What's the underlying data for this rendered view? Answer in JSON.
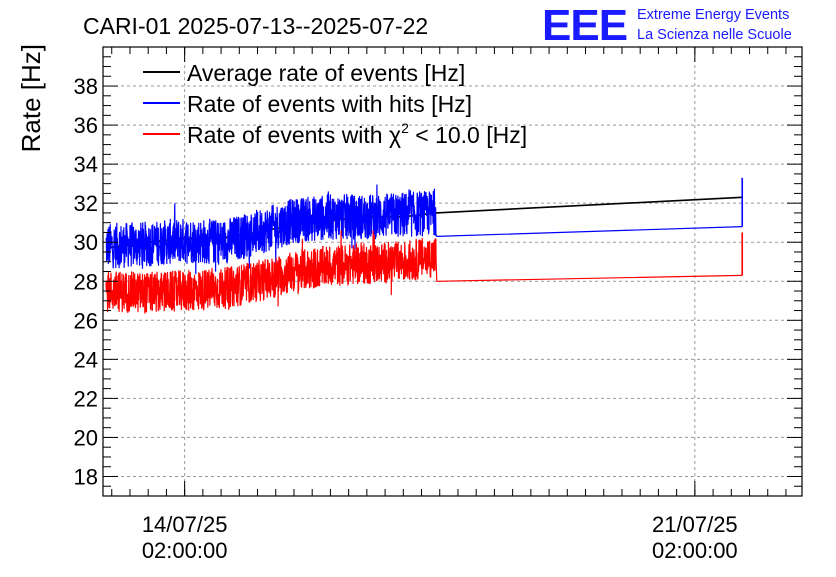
{
  "chart_data": {
    "type": "line",
    "title": "CARI-01 2025-07-13--2025-07-22",
    "ylabel": "Rate [Hz]",
    "xlabel": "",
    "x_unit": "days since 14/07/25 02:00:00",
    "xlim": [
      -1.12,
      8.47
    ],
    "ylim": [
      17,
      40
    ],
    "grid": true,
    "legend_position": "top-left",
    "y_ticks": [
      "18",
      "20",
      "22",
      "24",
      "26",
      "28",
      "30",
      "32",
      "34",
      "36",
      "38"
    ],
    "x_ticks": [
      {
        "x": 0,
        "line1": "14/07/25",
        "line2": "02:00:00"
      },
      {
        "x": 7,
        "line1": "21/07/25",
        "line2": "02:00:00"
      }
    ],
    "noisy_window": [
      -1.08,
      3.45
    ],
    "gap_end": 7.65,
    "series": [
      {
        "name": "Average rate of events [Hz]",
        "legend_main": "Average rate of events [Hz]",
        "color": "#000000",
        "points": [
          [
            -1.08,
            29.7
          ],
          [
            -0.5,
            30.0
          ],
          [
            0.0,
            30.2
          ],
          [
            0.5,
            30.2
          ],
          [
            1.0,
            30.5
          ],
          [
            1.5,
            30.9
          ],
          [
            2.0,
            31.1
          ],
          [
            2.5,
            31.3
          ],
          [
            3.0,
            31.3
          ],
          [
            3.45,
            31.5
          ],
          [
            7.65,
            32.3
          ]
        ],
        "spike": null
      },
      {
        "name": "Rate of events with hits [Hz]",
        "legend_main": "Rate of events with hits [Hz]",
        "color": "#0000ff",
        "points": [
          [
            -1.08,
            29.8
          ],
          [
            -0.5,
            29.9
          ],
          [
            0.0,
            30.1
          ],
          [
            0.5,
            30.0
          ],
          [
            1.0,
            30.5
          ],
          [
            1.5,
            31.1
          ],
          [
            2.0,
            31.3
          ],
          [
            2.5,
            31.3
          ],
          [
            3.0,
            31.4
          ],
          [
            3.45,
            31.5
          ],
          [
            3.46,
            30.3
          ],
          [
            7.65,
            30.8
          ]
        ],
        "spike": [
          30.8,
          33.3
        ]
      },
      {
        "name": "Rate of events with χ² < 10.0 [Hz]",
        "legend_prefix": "Rate of events with χ",
        "legend_sup": "2",
        "legend_suffix": " < 10.0 [Hz]",
        "color": "#ff0000",
        "points": [
          [
            -1.08,
            27.5
          ],
          [
            -0.5,
            27.4
          ],
          [
            0.0,
            27.5
          ],
          [
            0.5,
            27.6
          ],
          [
            1.0,
            28.0
          ],
          [
            1.5,
            28.5
          ],
          [
            2.0,
            28.8
          ],
          [
            2.5,
            28.9
          ],
          [
            3.0,
            29.0
          ],
          [
            3.45,
            29.3
          ],
          [
            3.46,
            28.0
          ],
          [
            7.65,
            28.3
          ]
        ],
        "spike": [
          28.3,
          30.5
        ]
      }
    ]
  },
  "logo": {
    "text": "EEE",
    "line1": "Extreme Energy Events",
    "line2": "La Scienza nelle Scuole",
    "color": "#1a1aff"
  }
}
